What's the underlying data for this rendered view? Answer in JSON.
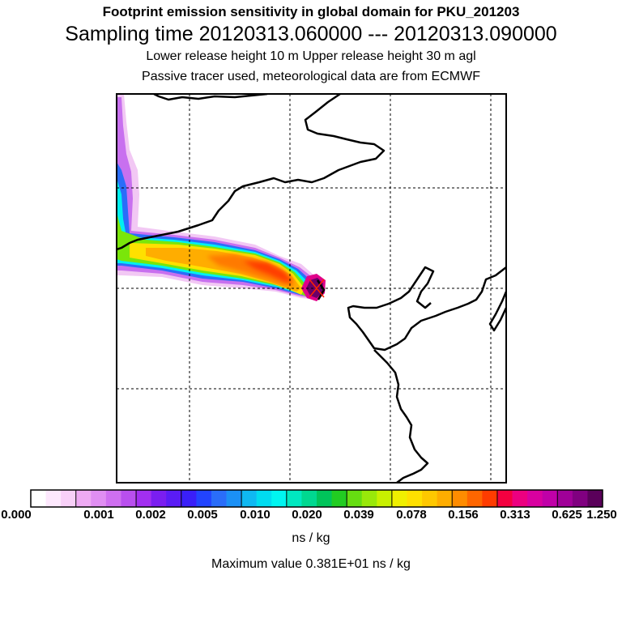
{
  "header": {
    "title": "Footprint emission sensitivity in global domain for PKU_201203",
    "sampling": "Sampling time   20120313.060000 --- 20120313.090000",
    "release": "Lower release height   10 m          Upper release height   30 m     agl",
    "tracer": "Passive tracer used, meteorological data are from ECMWF"
  },
  "colorbar": {
    "colors": [
      "#ffffff",
      "#fde8fd",
      "#f8d0f8",
      "#eeaaf3",
      "#e08ef2",
      "#cf6ff0",
      "#b94fee",
      "#a22ff0",
      "#7a1ef0",
      "#5a1cf5",
      "#3a1ff8",
      "#2244ff",
      "#2a6df9",
      "#1b90f5",
      "#0fb8f2",
      "#00dcf0",
      "#00f5f0",
      "#00e8c0",
      "#00d890",
      "#00c45a",
      "#22cc22",
      "#66dd11",
      "#99e80a",
      "#c8f000",
      "#f0f000",
      "#ffe000",
      "#ffc800",
      "#ffad00",
      "#ff8c00",
      "#ff6600",
      "#ff3c00",
      "#f40040",
      "#ec0080",
      "#d800a0",
      "#c000a8",
      "#a00098",
      "#800080",
      "#5a005a"
    ],
    "tick_labels": [
      "0.000",
      "0.001",
      "0.002",
      "0.005",
      "0.010",
      "0.020",
      "0.039",
      "0.078",
      "0.156",
      "0.313",
      "0.625",
      "1.250"
    ],
    "units": "ns / kg"
  },
  "max_value": "Maximum value  0.381E+01 ns / kg"
}
